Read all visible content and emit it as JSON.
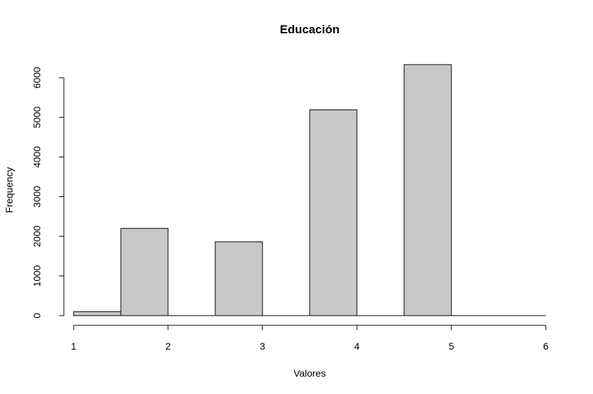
{
  "chart_data": {
    "type": "bar",
    "title": "Educación",
    "xlabel": "Valores",
    "ylabel": "Frequency",
    "xlim": [
      1,
      6
    ],
    "ylim": [
      0,
      6500
    ],
    "x_ticks": [
      1,
      2,
      3,
      4,
      5,
      6
    ],
    "y_ticks": [
      0,
      1000,
      2000,
      3000,
      4000,
      5000,
      6000
    ],
    "bins": [
      {
        "start": 1.0,
        "end": 1.5,
        "value": 100
      },
      {
        "start": 1.5,
        "end": 2.0,
        "value": 2200
      },
      {
        "start": 2.0,
        "end": 2.5,
        "value": 0
      },
      {
        "start": 2.5,
        "end": 3.0,
        "value": 1860
      },
      {
        "start": 3.0,
        "end": 3.5,
        "value": 0
      },
      {
        "start": 3.5,
        "end": 4.0,
        "value": 5190
      },
      {
        "start": 4.0,
        "end": 4.5,
        "value": 0
      },
      {
        "start": 4.5,
        "end": 5.0,
        "value": 6330
      },
      {
        "start": 5.0,
        "end": 5.5,
        "value": 0
      },
      {
        "start": 5.5,
        "end": 6.0,
        "value": 0
      }
    ],
    "bar_color": "#c8c8c8",
    "grid": false
  }
}
